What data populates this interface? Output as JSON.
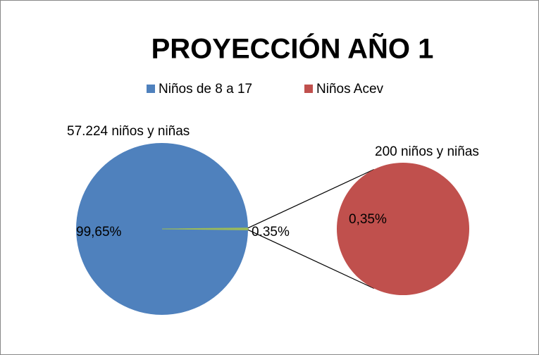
{
  "chart_data": {
    "type": "pie-of-pie",
    "title": "PROYECCIÓN AÑO 1",
    "categories": [
      "Niños de 8 a 17",
      "Niños Acev"
    ],
    "colors": [
      "#4f81bd",
      "#c0504d"
    ],
    "values": [
      99.65,
      0.35
    ],
    "value_labels": [
      "99,65%",
      "0.35%"
    ],
    "other_color": "#9bbb59",
    "secondary": {
      "values": [
        0.35
      ],
      "value_labels": [
        "0,35%"
      ]
    },
    "counts": [
      57224,
      200
    ],
    "count_labels": [
      "57.224 niños y niñas",
      "200 niños y niñas"
    ]
  }
}
